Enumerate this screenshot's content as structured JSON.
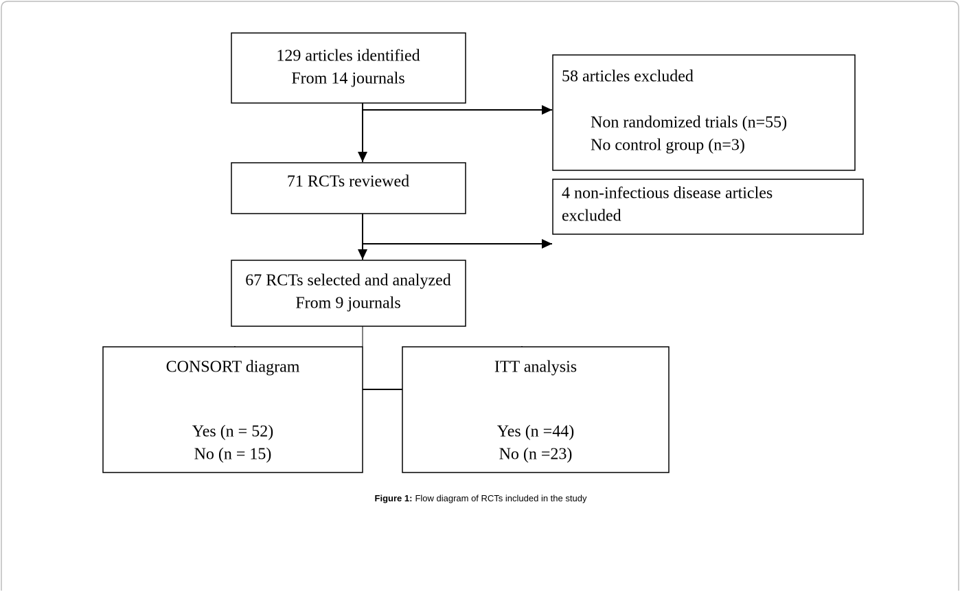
{
  "nodes": [
    {
      "lines": [
        "129 articles identified",
        "From 14 journals"
      ]
    },
    {
      "lines": [
        "58 articles excluded",
        "Non randomized trials (n=55)",
        "No control group (n=3)"
      ]
    },
    {
      "lines": [
        "71 RCTs reviewed"
      ]
    },
    {
      "lines": [
        "4 non-infectious disease articles",
        "excluded"
      ]
    },
    {
      "lines": [
        "67 RCTs selected and analyzed",
        "From 9 journals"
      ]
    },
    {
      "lines": [
        "CONSORT diagram",
        "Yes (n = 52)",
        "No (n = 15)"
      ]
    },
    {
      "lines": [
        "ITT analysis",
        "Yes (n =44)",
        "No (n =23)"
      ]
    }
  ],
  "caption": {
    "label": "Figure 1:",
    "text": "Flow diagram of RCTs included in the study"
  }
}
